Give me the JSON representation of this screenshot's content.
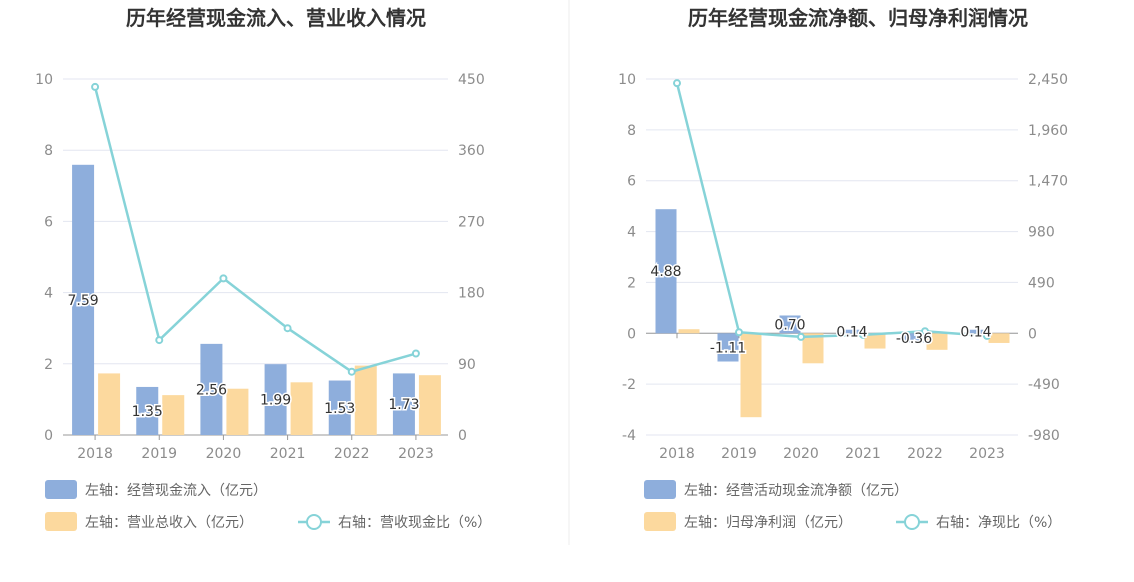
{
  "chart_data": [
    {
      "type": "bar",
      "title": "历年经营现金流入、营业收入情况",
      "categories": [
        "2018",
        "2019",
        "2020",
        "2021",
        "2022",
        "2023"
      ],
      "y_left": {
        "range": [
          0,
          10
        ],
        "ticks": [
          "0",
          "2",
          "4",
          "6",
          "8",
          "10"
        ]
      },
      "y_right": {
        "range": [
          0,
          450
        ],
        "ticks": [
          "0",
          "90",
          "180",
          "270",
          "360",
          "450"
        ]
      },
      "series": [
        {
          "name": "左轴：经营现金流入（亿元）",
          "type": "bar",
          "axis": "left",
          "color": "#8eaedc",
          "values": [
            7.59,
            1.35,
            2.56,
            1.99,
            1.53,
            1.73
          ],
          "labels": [
            "7.59",
            "1.35",
            "2.56",
            "1.99",
            "1.53",
            "1.73"
          ]
        },
        {
          "name": "左轴：营业总收入（亿元）",
          "type": "bar",
          "axis": "left",
          "color": "#fcd99e",
          "values": [
            1.73,
            1.12,
            1.3,
            1.48,
            1.95,
            1.68
          ]
        },
        {
          "name": "右轴：营收现金比（%）",
          "type": "line",
          "axis": "right",
          "color": "#86d3d8",
          "values": [
            440,
            120,
            198,
            135,
            80,
            103
          ]
        }
      ],
      "legend": "bottom"
    },
    {
      "type": "bar",
      "title": "历年经营现金流净额、归母净利润情况",
      "categories": [
        "2018",
        "2019",
        "2020",
        "2021",
        "2022",
        "2023"
      ],
      "y_left": {
        "range": [
          -4,
          10
        ],
        "ticks": [
          "-4",
          "-2",
          "0",
          "2",
          "4",
          "6",
          "8",
          "10"
        ]
      },
      "y_right": {
        "range": [
          -980,
          2450
        ],
        "ticks": [
          "-980",
          "-490",
          "0",
          "490",
          "980",
          "1,470",
          "1,960",
          "2,450"
        ]
      },
      "series": [
        {
          "name": "左轴：经营活动现金流净额（亿元）",
          "type": "bar",
          "axis": "left",
          "color": "#8eaedc",
          "values": [
            4.88,
            -1.11,
            0.7,
            0.14,
            -0.36,
            0.14
          ],
          "labels": [
            "4.88",
            "-1.11",
            "0.70",
            "0.14",
            "-0.36",
            "0.14"
          ]
        },
        {
          "name": "左轴：归母净利润（亿元）",
          "type": "bar",
          "axis": "left",
          "color": "#fcd99e",
          "values": [
            0.16,
            -3.3,
            -1.18,
            -0.6,
            -0.65,
            -0.38
          ]
        },
        {
          "name": "右轴：净现比（%）",
          "type": "line",
          "axis": "right",
          "color": "#86d3d8",
          "values": [
            2410,
            10,
            -35,
            -15,
            20,
            -25
          ]
        }
      ],
      "legend": "bottom"
    }
  ]
}
